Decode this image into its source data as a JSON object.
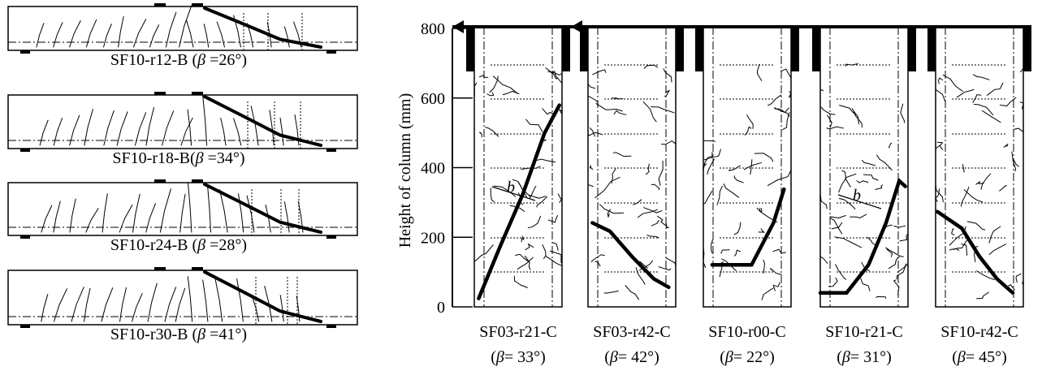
{
  "beams": [
    {
      "label": [
        "SF10-r12-B (",
        "β",
        " =26°)"
      ]
    },
    {
      "label": [
        "SF10-r18-B(",
        "β",
        " =34°)"
      ]
    },
    {
      "label": [
        "SF10-r24-B (",
        "β",
        " =28°)"
      ]
    },
    {
      "label": [
        "SF10-r30-B (",
        "β",
        " =41°)"
      ]
    }
  ],
  "columns_axis": {
    "title": "Height of column (mm)",
    "ylim": [
      0,
      800
    ],
    "yticks": [
      0,
      200,
      400,
      600,
      800
    ]
  },
  "columns": [
    {
      "name": "SF03-r21-C",
      "beta": [
        "(",
        "β",
        "= 33°)"
      ],
      "annotation": "b"
    },
    {
      "name": "SF03-r42-C",
      "beta": [
        "(",
        "β",
        "= 42°)"
      ]
    },
    {
      "name": "SF10-r00-C",
      "beta": [
        "(",
        "β",
        "= 22°)"
      ]
    },
    {
      "name": "SF10-r21-C",
      "beta": [
        "(",
        "β",
        "= 31°)"
      ],
      "annotation": "b"
    },
    {
      "name": "SF10-r42-C",
      "beta": [
        "(",
        "β",
        "= 45°)"
      ]
    }
  ]
}
